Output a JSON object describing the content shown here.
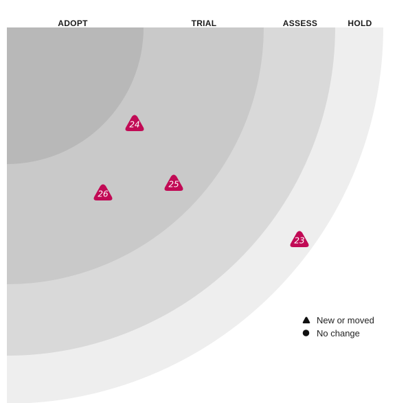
{
  "radar": {
    "rings": [
      {
        "label": "ADOPT",
        "color": "#b8b8b8"
      },
      {
        "label": "TRIAL",
        "color": "#c9c9c9"
      },
      {
        "label": "ASSESS",
        "color": "#d9d9d9"
      },
      {
        "label": "HOLD",
        "color": "#eeeeee"
      }
    ],
    "blip_color": "#c10a55",
    "blips": [
      {
        "number": "24",
        "ring": "TRIAL",
        "status": "new-or-moved"
      },
      {
        "number": "25",
        "ring": "TRIAL",
        "status": "new-or-moved"
      },
      {
        "number": "26",
        "ring": "TRIAL",
        "status": "new-or-moved"
      },
      {
        "number": "23",
        "ring": "HOLD",
        "status": "new-or-moved"
      }
    ]
  },
  "legend": {
    "new_or_moved": "New or moved",
    "no_change": "No change"
  }
}
